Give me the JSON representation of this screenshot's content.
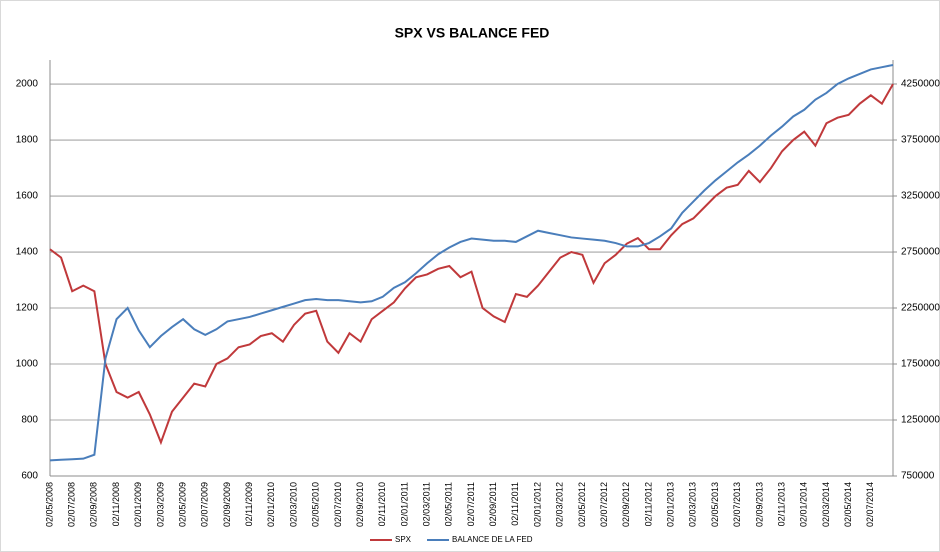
{
  "chart_data": {
    "type": "line",
    "title": "SPX VS BALANCE FED",
    "categories": [
      "02/05/2008",
      null,
      "02/07/2008",
      null,
      "02/09/2008",
      null,
      "02/11/2008",
      null,
      "02/01/2009",
      null,
      "02/03/2009",
      null,
      "02/05/2009",
      null,
      "02/07/2009",
      null,
      "02/09/2009",
      null,
      "02/11/2009",
      null,
      "02/01/2010",
      null,
      "02/03/2010",
      null,
      "02/05/2010",
      null,
      "02/07/2010",
      null,
      "02/09/2010",
      null,
      "02/11/2010",
      null,
      "02/01/2011",
      null,
      "02/03/2011",
      null,
      "02/05/2011",
      null,
      "02/07/2011",
      null,
      "02/09/2011",
      null,
      "02/11/2011",
      null,
      "02/01/2012",
      null,
      "02/03/2012",
      null,
      "02/05/2012",
      null,
      "02/07/2012",
      null,
      "02/09/2012",
      null,
      "02/11/2012",
      null,
      "02/01/2013",
      null,
      "02/03/2013",
      null,
      "02/05/2013",
      null,
      "02/07/2013",
      null,
      "02/09/2013",
      null,
      "02/11/2013",
      null,
      "02/01/2014",
      null,
      "02/03/2014",
      null,
      "02/05/2014",
      null,
      "02/07/2014",
      null,
      null
    ],
    "series": [
      {
        "name": "SPX",
        "color": "#c0393b",
        "values": [
          1410,
          1380,
          1260,
          1280,
          1260,
          1000,
          900,
          880,
          900,
          820,
          720,
          830,
          880,
          930,
          920,
          1000,
          1020,
          1060,
          1070,
          1100,
          1110,
          1080,
          1140,
          1180,
          1190,
          1080,
          1040,
          1110,
          1080,
          1160,
          1190,
          1220,
          1270,
          1310,
          1320,
          1340,
          1350,
          1310,
          1330,
          1200,
          1170,
          1150,
          1250,
          1240,
          1280,
          1330,
          1380,
          1400,
          1390,
          1290,
          1360,
          1390,
          1430,
          1450,
          1410,
          1410,
          1460,
          1500,
          1520,
          1560,
          1600,
          1630,
          1640,
          1690,
          1650,
          1700,
          1760,
          1800,
          1830,
          1780,
          1860,
          1880,
          1890,
          1930,
          1960,
          1930,
          2000
        ]
      },
      {
        "name": "BALANCE DE LA FED",
        "color": "#4a7ebb",
        "axis": "y2",
        "values": [
          890000,
          895000,
          900000,
          905000,
          940000,
          1800000,
          2150000,
          2250000,
          2050000,
          1900000,
          2000000,
          2080000,
          2150000,
          2060000,
          2010000,
          2060000,
          2130000,
          2150000,
          2170000,
          2200000,
          2230000,
          2260000,
          2290000,
          2320000,
          2330000,
          2320000,
          2320000,
          2310000,
          2300000,
          2310000,
          2350000,
          2430000,
          2480000,
          2560000,
          2650000,
          2730000,
          2790000,
          2840000,
          2870000,
          2860000,
          2850000,
          2850000,
          2840000,
          2890000,
          2940000,
          2920000,
          2900000,
          2880000,
          2870000,
          2860000,
          2850000,
          2830000,
          2800000,
          2800000,
          2830000,
          2890000,
          2960000,
          3100000,
          3200000,
          3300000,
          3390000,
          3470000,
          3550000,
          3620000,
          3700000,
          3790000,
          3870000,
          3960000,
          4020000,
          4110000,
          4170000,
          4250000,
          4300000,
          4340000,
          4380000,
          4400000,
          4420000
        ]
      }
    ],
    "ylim": [
      600,
      2086
    ],
    "yticks": [
      600,
      800,
      1000,
      1200,
      1400,
      1600,
      1800,
      2000
    ],
    "y2lim": [
      750000,
      4464286
    ],
    "y2ticks": [
      750000,
      1250000,
      1750000,
      2250000,
      2750000,
      3250000,
      3750000,
      4250000
    ],
    "grid": true,
    "legend": "bottom"
  }
}
